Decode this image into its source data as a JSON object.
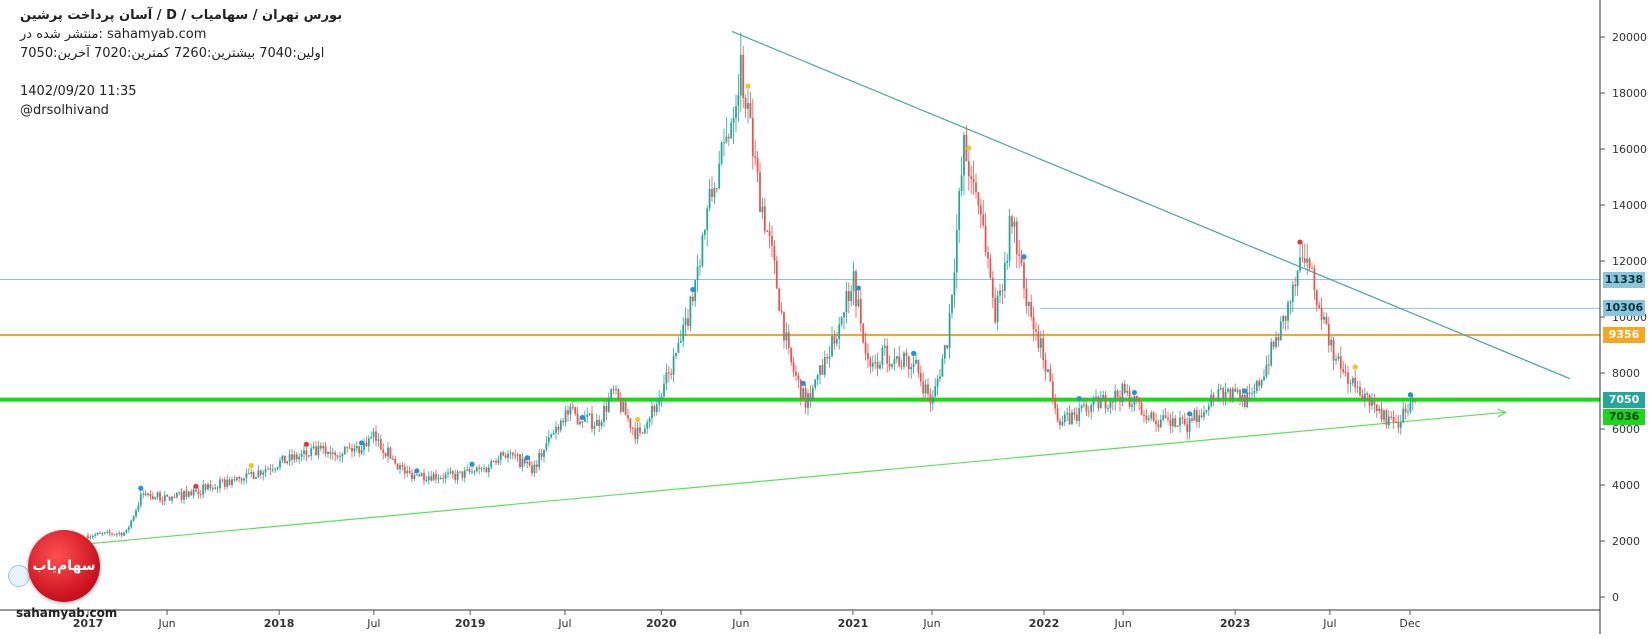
{
  "header": {
    "title": "آسان پرداخت پرشین /  D  /  بورس تهران / سهامیاب",
    "published": "منتشر شده در: sahamyab.com",
    "ohlc": "اولین:7040  بیشترین:7260  کمترین:7020  آخرین:7050",
    "datetime": "1402/09/20 11:35",
    "author": "@drsolhivand"
  },
  "watermark": "sahamyab.com",
  "logo_text": "سهام‌یاب",
  "colors": {
    "up_candle": "#26a69a",
    "down_candle": "#ef5350",
    "resistance_trendline": "#4aa3a0",
    "support_trendline": "#5ee05e",
    "support_level": "#19d919",
    "orange_level": "#f5a623",
    "blue_level": "#8ac5d8",
    "marker_blue": "#2a8fd9",
    "marker_yellow": "#f5c518",
    "marker_red": "#e53935"
  },
  "chart_data": {
    "type": "candlestick",
    "symbol": "آسان پرداخت پرشین",
    "timeframe": "D",
    "ylim": [
      0,
      21000
    ],
    "y_ticks": [
      0,
      2000,
      4000,
      6000,
      8000,
      10000,
      12000,
      14000,
      16000,
      18000,
      20000
    ],
    "x_labels": [
      "2017",
      "Jun",
      "2018",
      "Jul",
      "2019",
      "Jul",
      "2020",
      "Jun",
      "2021",
      "Jun",
      "2022",
      "Jun",
      "2023",
      "Jul",
      "Dec"
    ],
    "x_label_dates": [
      "2017-01-01",
      "2017-06-01",
      "2018-01-01",
      "2018-07-01",
      "2019-01-01",
      "2019-07-01",
      "2020-01-01",
      "2020-06-01",
      "2021-01-01",
      "2021-06-01",
      "2022-01-01",
      "2022-06-01",
      "2023-01-01",
      "2023-07-01",
      "2023-12-01"
    ],
    "price_path": [
      [
        "2017-01-01",
        2200
      ],
      [
        "2017-03-15",
        2300
      ],
      [
        "2017-04-15",
        3700
      ],
      [
        "2017-06-01",
        3500
      ],
      [
        "2017-08-01",
        3800
      ],
      [
        "2017-11-01",
        4300
      ],
      [
        "2018-01-01",
        4800
      ],
      [
        "2018-03-15",
        5200
      ],
      [
        "2018-06-01",
        5300
      ],
      [
        "2018-07-01",
        5700
      ],
      [
        "2018-09-01",
        4400
      ],
      [
        "2018-12-01",
        4300
      ],
      [
        "2019-02-01",
        4600
      ],
      [
        "2019-03-01",
        5200
      ],
      [
        "2019-05-01",
        4600
      ],
      [
        "2019-07-01",
        6600
      ],
      [
        "2019-09-01",
        6200
      ],
      [
        "2019-10-01",
        7300
      ],
      [
        "2019-11-15",
        5800
      ],
      [
        "2020-01-01",
        7200
      ],
      [
        "2020-02-15",
        9500
      ],
      [
        "2020-04-01",
        14000
      ],
      [
        "2020-05-01",
        16000
      ],
      [
        "2020-06-01",
        19000
      ],
      [
        "2020-07-01",
        15000
      ],
      [
        "2020-08-01",
        12000
      ],
      [
        "2020-09-01",
        8500
      ],
      [
        "2020-10-01",
        7000
      ],
      [
        "2020-11-15",
        8500
      ],
      [
        "2021-01-01",
        11500
      ],
      [
        "2021-02-01",
        8000
      ],
      [
        "2021-03-01",
        8700
      ],
      [
        "2021-05-01",
        8200
      ],
      [
        "2021-06-01",
        6900
      ],
      [
        "2021-07-01",
        9300
      ],
      [
        "2021-08-01",
        16000
      ],
      [
        "2021-09-01",
        14000
      ],
      [
        "2021-10-01",
        10000
      ],
      [
        "2021-11-01",
        13600
      ],
      [
        "2021-12-01",
        10200
      ],
      [
        "2022-01-01",
        8600
      ],
      [
        "2022-02-01",
        6200
      ],
      [
        "2022-04-01",
        6800
      ],
      [
        "2022-06-01",
        7300
      ],
      [
        "2022-08-01",
        6300
      ],
      [
        "2022-10-01",
        6100
      ],
      [
        "2022-12-01",
        7400
      ],
      [
        "2023-02-01",
        7000
      ],
      [
        "2023-04-01",
        9700
      ],
      [
        "2023-05-15",
        12200
      ],
      [
        "2023-06-15",
        10000
      ],
      [
        "2023-07-15",
        8300
      ],
      [
        "2023-09-01",
        7200
      ],
      [
        "2023-11-01",
        6100
      ],
      [
        "2023-12-11",
        7050
      ]
    ],
    "horizontal_levels": [
      {
        "value": 11338,
        "label": "11338",
        "color": "#8ac5d8"
      },
      {
        "value": 10306,
        "label": "10306",
        "color": "#8ac5d8",
        "from": "2022-02-01"
      },
      {
        "value": 9356,
        "label": "9356",
        "color": "#f5a623"
      },
      {
        "value": 7050,
        "label": "7050",
        "color": "#19d919"
      },
      {
        "value": 7036,
        "label": "7036",
        "color": "#19d919"
      }
    ],
    "trendlines": [
      {
        "name": "resistance",
        "from": [
          "2020-05-15",
          20200
        ],
        "to": [
          "2024-10-01",
          7800
        ],
        "color": "#4aa3a0"
      },
      {
        "name": "support",
        "from": [
          "2017-01-01",
          1900
        ],
        "to": [
          "2024-06-01",
          6600
        ],
        "color": "#5ee05e",
        "arrow": true
      }
    ],
    "last_price": 7050,
    "last_label_color": "#26a69a"
  }
}
